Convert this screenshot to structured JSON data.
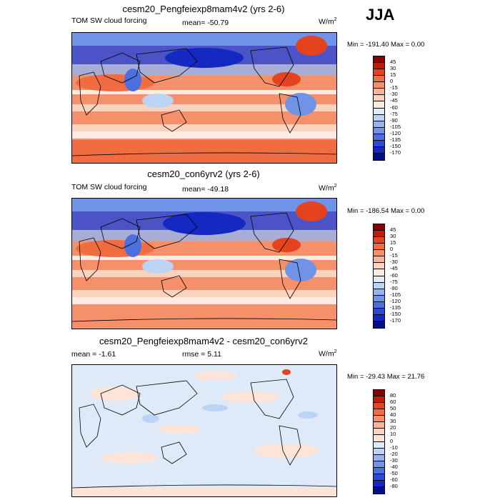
{
  "season": "JJA",
  "panels": [
    {
      "title": "cesm20_Pengfeiexp8mam4v2 (yrs 2-6)",
      "left_label": "TOM SW cloud forcing",
      "stat": "mean= -50.79",
      "units": "W/m",
      "units_sup": "2",
      "minmax": "Min = -191.40 Max =   0.00",
      "colorbar": {
        "labels": [
          "45",
          "30",
          "15",
          "0",
          "-15",
          "-30",
          "-45",
          "-60",
          "-75",
          "-90",
          "-105",
          "-120",
          "-135",
          "-150",
          "-170"
        ],
        "colors": [
          "#8b0000",
          "#c31a05",
          "#e5431e",
          "#f06d41",
          "#f4906a",
          "#f7b396",
          "#fad3bf",
          "#fcebe0",
          "#dfeaf9",
          "#bbd3f5",
          "#95b4ef",
          "#6f93e7",
          "#4c6fe0",
          "#2b4ad6",
          "#1428c2",
          "#000e8e"
        ]
      }
    },
    {
      "title": "cesm20_con6yrv2 (yrs 2-6)",
      "left_label": "TOM SW cloud forcing",
      "stat": "mean= -49.18",
      "units": "W/m",
      "units_sup": "2",
      "minmax": "Min = -186.54 Max =   0.00",
      "colorbar": {
        "labels": [
          "45",
          "30",
          "15",
          "0",
          "-15",
          "-30",
          "-45",
          "-60",
          "-75",
          "-90",
          "-105",
          "-120",
          "-135",
          "-150",
          "-170"
        ],
        "colors": [
          "#8b0000",
          "#c31a05",
          "#e5431e",
          "#f06d41",
          "#f4906a",
          "#f7b396",
          "#fad3bf",
          "#fcebe0",
          "#dfeaf9",
          "#bbd3f5",
          "#95b4ef",
          "#6f93e7",
          "#4c6fe0",
          "#2b4ad6",
          "#1428c2",
          "#000e8e"
        ]
      }
    },
    {
      "title": "cesm20_Pengfeiexp8mam4v2 - cesm20_con6yrv2",
      "left_label": "mean =  -1.61",
      "stat": "rmse =   5.11",
      "units": "W/m",
      "units_sup": "2",
      "minmax": "Min = -29.43 Max =  21.76",
      "colorbar": {
        "labels": [
          "80",
          "60",
          "50",
          "40",
          "30",
          "20",
          "10",
          "0",
          "-10",
          "-20",
          "-30",
          "-40",
          "-50",
          "-60",
          "-80"
        ],
        "colors": [
          "#8b0000",
          "#c31a05",
          "#e5431e",
          "#f06d41",
          "#f4906a",
          "#f7b396",
          "#fad3bf",
          "#fde4d6",
          "#dfeaf9",
          "#bbd3f5",
          "#95b4ef",
          "#6f93e7",
          "#4c6fe0",
          "#2b4ad6",
          "#1428c2",
          "#000e8e"
        ]
      }
    }
  ],
  "chart_data": [
    {
      "type": "heatmap",
      "title": "cesm20_Pengfeiexp8mam4v2 (yrs 2-6)",
      "field": "TOM SW cloud forcing",
      "units": "W/m2",
      "mean": -50.79,
      "min": -191.4,
      "max": 0.0,
      "contour_levels": [
        45,
        30,
        15,
        0,
        -15,
        -30,
        -45,
        -60,
        -75,
        -90,
        -105,
        -120,
        -135,
        -150,
        -170
      ]
    },
    {
      "type": "heatmap",
      "title": "cesm20_con6yrv2 (yrs 2-6)",
      "field": "TOM SW cloud forcing",
      "units": "W/m2",
      "mean": -49.18,
      "min": -186.54,
      "max": 0.0,
      "contour_levels": [
        45,
        30,
        15,
        0,
        -15,
        -30,
        -45,
        -60,
        -75,
        -90,
        -105,
        -120,
        -135,
        -150,
        -170
      ]
    },
    {
      "type": "heatmap",
      "title": "cesm20_Pengfeiexp8mam4v2 - cesm20_con6yrv2",
      "units": "W/m2",
      "mean": -1.61,
      "rmse": 5.11,
      "min": -29.43,
      "max": 21.76,
      "contour_levels": [
        80,
        60,
        50,
        40,
        30,
        20,
        10,
        0,
        -10,
        -20,
        -30,
        -40,
        -50,
        -60,
        -80
      ]
    }
  ]
}
